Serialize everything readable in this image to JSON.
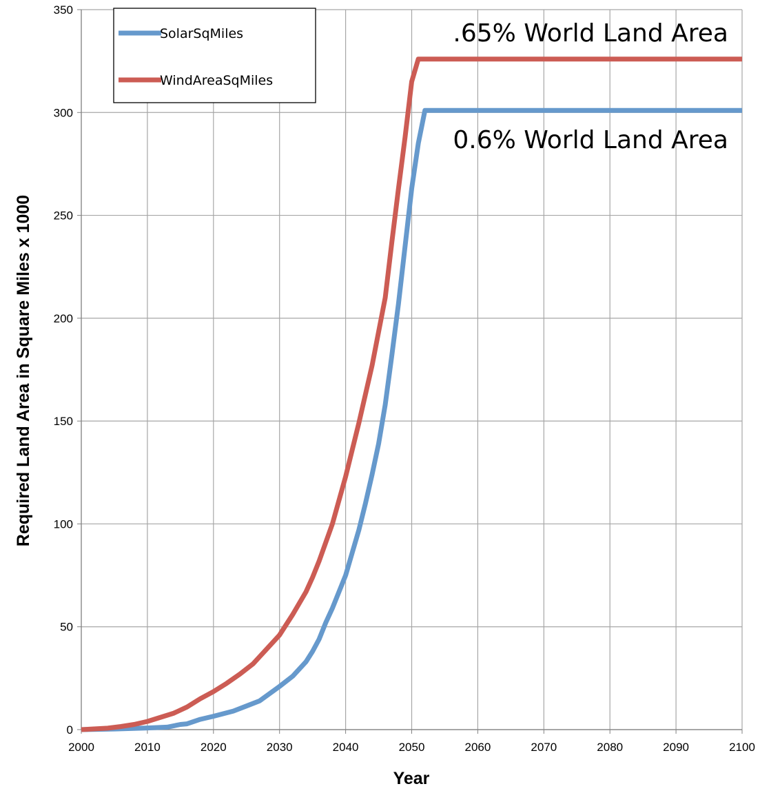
{
  "chart_data": {
    "type": "line",
    "title": "",
    "xlabel": "Year",
    "ylabel": "Required Land Area in Square Miles x 1000",
    "xlim": [
      2000,
      2100
    ],
    "ylim": [
      0,
      350
    ],
    "x_ticks": [
      2000,
      2010,
      2020,
      2030,
      2040,
      2050,
      2060,
      2070,
      2080,
      2090,
      2100
    ],
    "y_ticks": [
      0,
      50,
      100,
      150,
      200,
      250,
      300,
      350
    ],
    "x_tick_labels": [
      "2000",
      "2010",
      "2020",
      "2030",
      "2040",
      "2050",
      "2060",
      "2070",
      "2080",
      "2090",
      "2100"
    ],
    "y_tick_labels": [
      "0",
      "50",
      "100",
      "150",
      "200",
      "250",
      "300",
      "350"
    ],
    "grid": true,
    "legend_position": "top-left",
    "series": [
      {
        "name": "SolarSqMiles",
        "color": "#6699cc",
        "points": [
          [
            2000,
            0
          ],
          [
            2005,
            0.3
          ],
          [
            2010,
            0.8
          ],
          [
            2013,
            1.2
          ],
          [
            2015,
            2.5
          ],
          [
            2016,
            2.8
          ],
          [
            2018,
            5
          ],
          [
            2020,
            6.5
          ],
          [
            2023,
            9
          ],
          [
            2025,
            11.5
          ],
          [
            2027,
            14
          ],
          [
            2030,
            21
          ],
          [
            2032,
            26
          ],
          [
            2034,
            33
          ],
          [
            2035,
            38
          ],
          [
            2036,
            44
          ],
          [
            2037,
            52
          ],
          [
            2038,
            59
          ],
          [
            2040,
            75
          ],
          [
            2041,
            86
          ],
          [
            2042,
            97
          ],
          [
            2043,
            110
          ],
          [
            2044,
            124
          ],
          [
            2045,
            139
          ],
          [
            2046,
            158
          ],
          [
            2047,
            182
          ],
          [
            2048,
            207
          ],
          [
            2049,
            235
          ],
          [
            2050,
            263
          ],
          [
            2051,
            285
          ],
          [
            2052,
            301
          ],
          [
            2100,
            301
          ]
        ]
      },
      {
        "name": "WindAreaSqMiles",
        "color": "#cc5c54",
        "points": [
          [
            2000,
            0
          ],
          [
            2004,
            0.7
          ],
          [
            2006,
            1.5
          ],
          [
            2008,
            2.5
          ],
          [
            2010,
            4
          ],
          [
            2012,
            6
          ],
          [
            2014,
            8
          ],
          [
            2016,
            11
          ],
          [
            2018,
            15
          ],
          [
            2020,
            18.5
          ],
          [
            2022,
            22.5
          ],
          [
            2024,
            27
          ],
          [
            2026,
            32
          ],
          [
            2028,
            39
          ],
          [
            2030,
            46
          ],
          [
            2032,
            56
          ],
          [
            2034,
            67
          ],
          [
            2035,
            74
          ],
          [
            2036,
            82
          ],
          [
            2038,
            100
          ],
          [
            2040,
            123
          ],
          [
            2042,
            149
          ],
          [
            2044,
            177
          ],
          [
            2046,
            210
          ],
          [
            2047,
            237
          ],
          [
            2048,
            263
          ],
          [
            2049,
            288
          ],
          [
            2050,
            315
          ],
          [
            2051,
            326
          ],
          [
            2100,
            326
          ]
        ]
      }
    ],
    "annotations": [
      {
        "text": ".65% World Land Area",
        "x": 2100,
        "y": 326
      },
      {
        "text": "0.6% World Land Area",
        "x": 2100,
        "y": 301
      }
    ]
  }
}
